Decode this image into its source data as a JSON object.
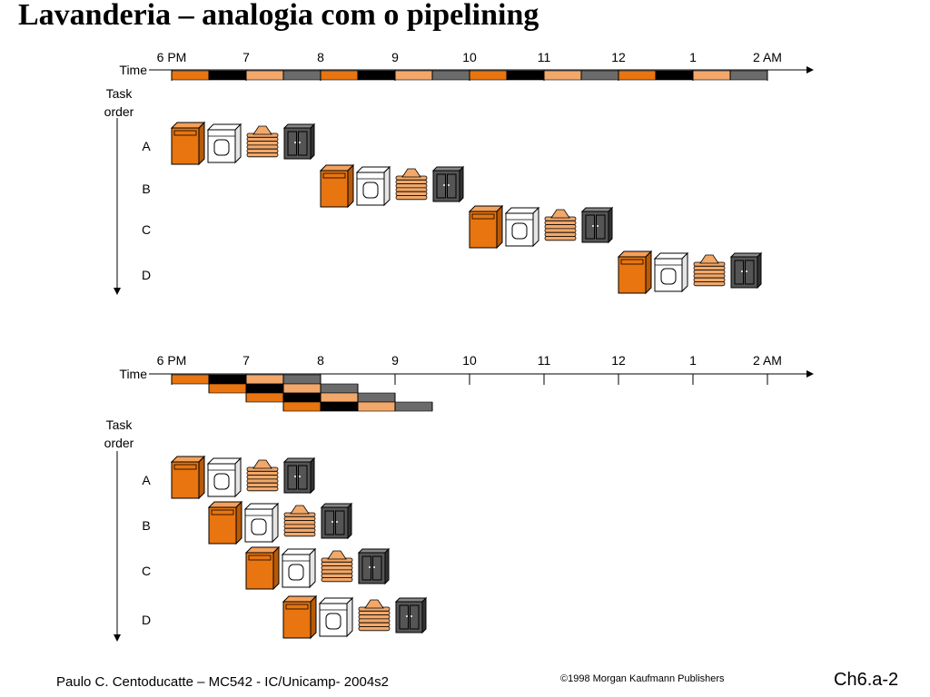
{
  "slide": {
    "title": "Lavanderia – analogia com o pipelining",
    "footer_left": "Paulo C. Centoducatte – MC542 - IC/Unicamp- 2004s2",
    "footer_center": "©1998 Morgan Kaufmann Publishers",
    "footer_right": "Ch6.a-2"
  },
  "colors": {
    "wash": "#e8750f",
    "dry": "#000000",
    "fold": "#f2a86a",
    "store": "#6b6b6b",
    "washer_fill": "#e8750f",
    "dryer_fill": "#ffffff",
    "clothes_fill": "#f2a86a",
    "closet_fill": "#555555"
  },
  "stages": [
    "wash",
    "dry",
    "fold",
    "store"
  ],
  "stage_icons": [
    "washer-icon",
    "dryer-icon",
    "folded-clothes-icon",
    "closet-icon"
  ],
  "diagrams": [
    {
      "id": "sequential",
      "time_label": "Time",
      "task_order_label": [
        "Task",
        "order"
      ],
      "hours": [
        "6 PM",
        "7",
        "8",
        "9",
        "10",
        "11",
        "12",
        "1",
        "2 AM"
      ],
      "tasks": [
        {
          "label": "A",
          "start_slot": 0
        },
        {
          "label": "B",
          "start_slot": 4
        },
        {
          "label": "C",
          "start_slot": 8
        },
        {
          "label": "D",
          "start_slot": 12
        }
      ],
      "timeline_bars": [
        {
          "start_slot": 0,
          "row": 0
        },
        {
          "start_slot": 4,
          "row": 0
        },
        {
          "start_slot": 8,
          "row": 0
        },
        {
          "start_slot": 12,
          "row": 0
        }
      ]
    },
    {
      "id": "pipelined",
      "time_label": "Time",
      "task_order_label": [
        "Task",
        "order"
      ],
      "hours": [
        "6 PM",
        "7",
        "8",
        "9",
        "10",
        "11",
        "12",
        "1",
        "2 AM"
      ],
      "tasks": [
        {
          "label": "A",
          "start_slot": 0
        },
        {
          "label": "B",
          "start_slot": 1
        },
        {
          "label": "C",
          "start_slot": 2
        },
        {
          "label": "D",
          "start_slot": 3
        }
      ],
      "timeline_bars": [
        {
          "start_slot": 0,
          "row": 0
        },
        {
          "start_slot": 1,
          "row": 1
        },
        {
          "start_slot": 2,
          "row": 2
        },
        {
          "start_slot": 3,
          "row": 3
        }
      ]
    }
  ]
}
